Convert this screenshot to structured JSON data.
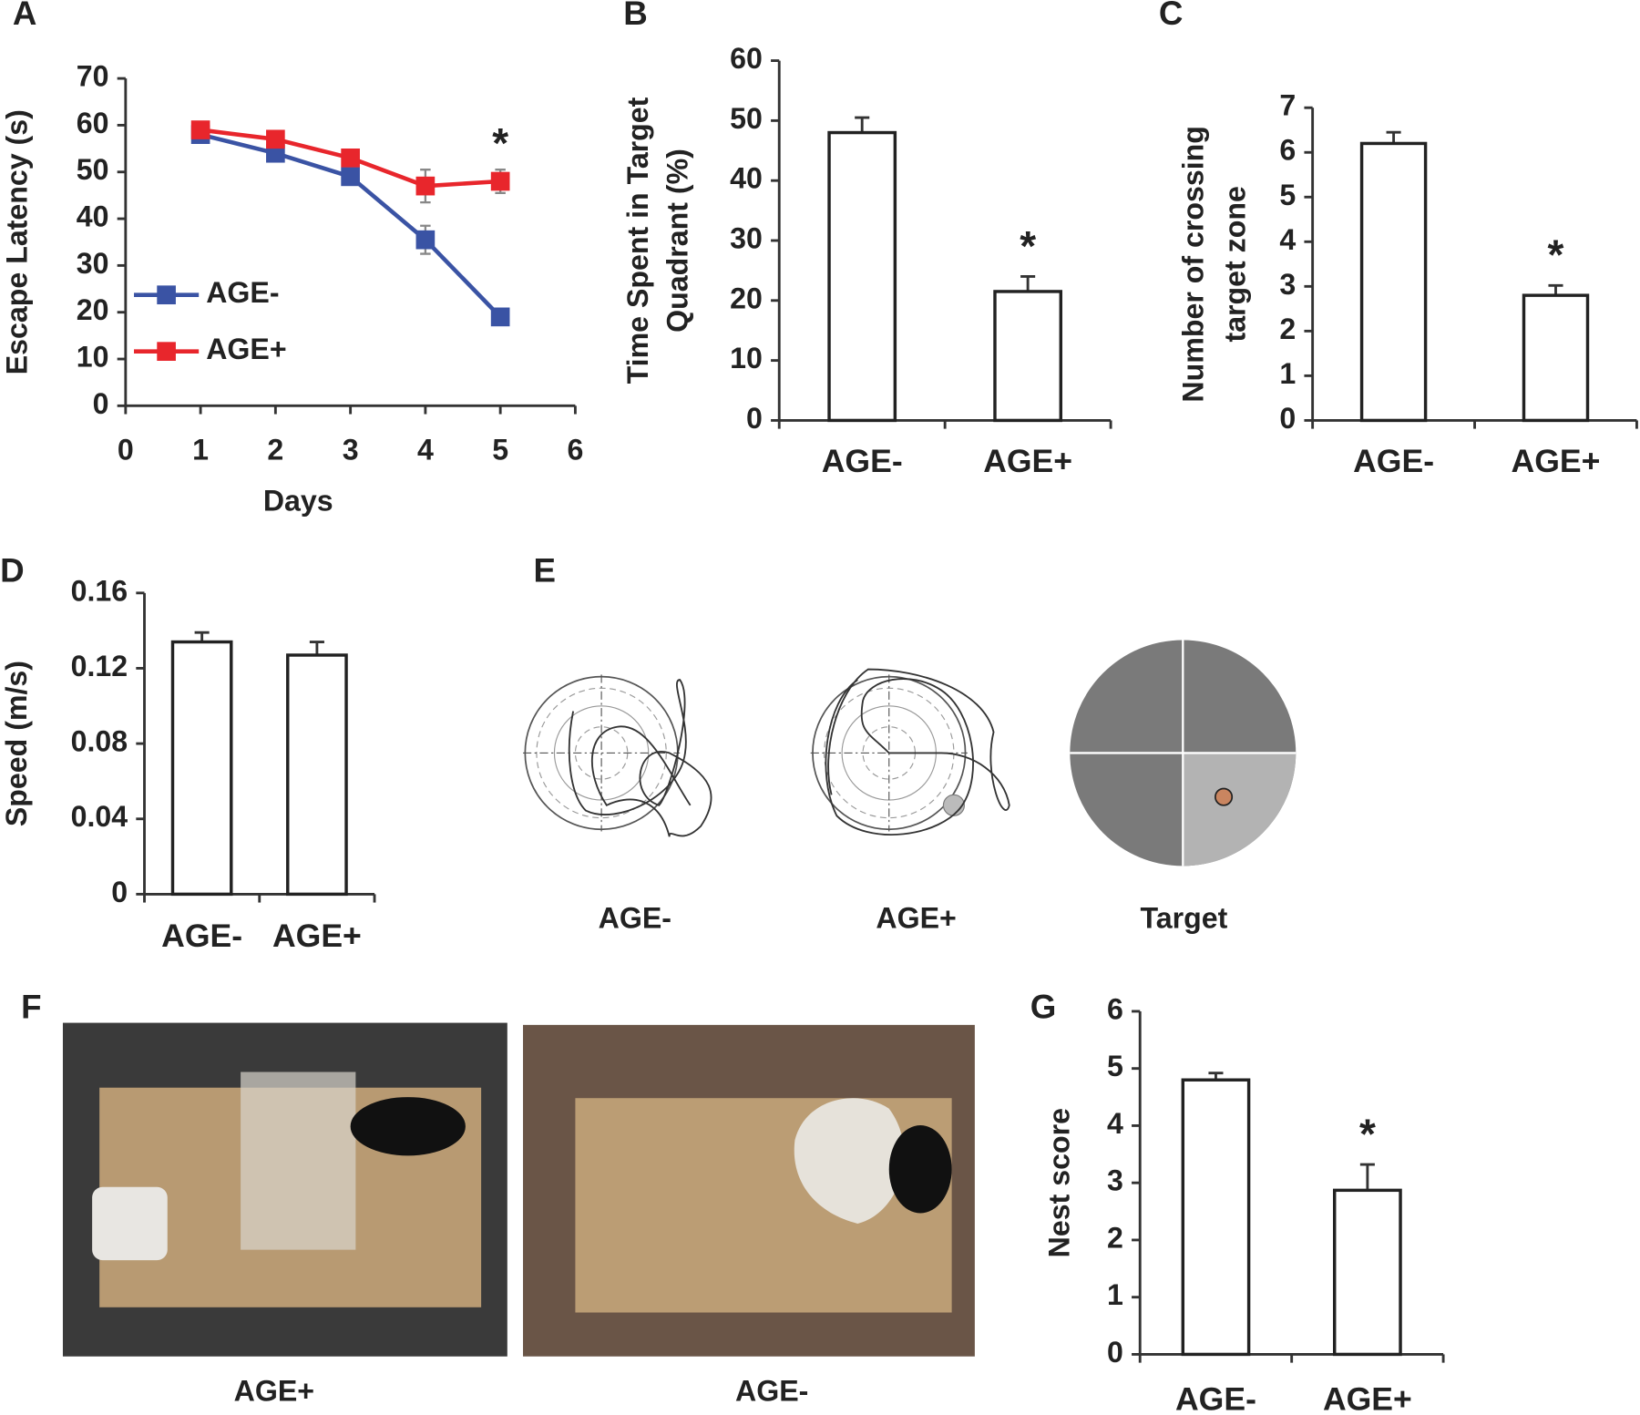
{
  "chart_data": [
    {
      "type": "line",
      "panel_label": "A",
      "xlabel": "Days",
      "ylabel": "Escape Latency (s)",
      "x": [
        1,
        2,
        3,
        4,
        5
      ],
      "xlim": [
        0,
        6
      ],
      "xticks": [
        0,
        1,
        2,
        3,
        4,
        5,
        6
      ],
      "ylim": [
        0,
        70
      ],
      "yticks": [
        0,
        10,
        20,
        30,
        40,
        50,
        60,
        70
      ],
      "legend": "lower left",
      "series": [
        {
          "name": "AGE-",
          "color": "#3a53a4",
          "values": [
            58,
            54,
            49,
            35.5,
            19
          ],
          "errors": [
            1,
            1.5,
            1.5,
            3,
            1
          ]
        },
        {
          "name": "AGE+",
          "color": "#e8262c",
          "values": [
            59,
            57,
            53,
            47,
            48
          ],
          "errors": [
            1,
            1,
            1,
            3.5,
            2.5
          ]
        }
      ],
      "significance": [
        null,
        null,
        null,
        null,
        "*"
      ]
    },
    {
      "type": "bar",
      "panel_label": "B",
      "ylabel": [
        "Time Spent in Target",
        "Quadrant (%)"
      ],
      "categories": [
        "AGE-",
        "AGE+"
      ],
      "values": [
        48,
        21.5
      ],
      "errors": [
        2.5,
        2.5
      ],
      "color": "#ffffff",
      "ylim": [
        0,
        60
      ],
      "yticks": [
        0,
        10,
        20,
        30,
        40,
        50,
        60
      ],
      "significance": [
        null,
        "*"
      ]
    },
    {
      "type": "bar",
      "panel_label": "C",
      "ylabel": [
        "Number of crossing",
        "target zone"
      ],
      "categories": [
        "AGE-",
        "AGE+"
      ],
      "values": [
        6.2,
        2.8
      ],
      "errors": [
        0.25,
        0.22
      ],
      "color": "#ffffff",
      "ylim": [
        0,
        7
      ],
      "yticks": [
        0,
        1,
        2,
        3,
        4,
        5,
        6,
        7
      ],
      "significance": [
        null,
        "*"
      ]
    },
    {
      "type": "bar",
      "panel_label": "D",
      "ylabel": "Speed (m/s)",
      "categories": [
        "AGE-",
        "AGE+"
      ],
      "values": [
        0.134,
        0.127
      ],
      "errors": [
        0.005,
        0.007
      ],
      "color": "#ffffff",
      "ylim": [
        0,
        0.16
      ],
      "yticks": [
        0,
        0.04,
        0.08,
        0.12,
        0.16
      ]
    },
    {
      "type": "bar",
      "panel_label": "G",
      "ylabel": "Nest score",
      "categories": [
        "AGE-",
        "AGE+"
      ],
      "values": [
        4.8,
        2.87
      ],
      "errors": [
        0.12,
        0.45
      ],
      "color": "#ffffff",
      "ylim": [
        0,
        6
      ],
      "yticks": [
        0,
        1,
        2,
        3,
        4,
        5,
        6
      ],
      "significance": [
        null,
        "*"
      ]
    }
  ],
  "trajectories": {
    "panel_label": "E",
    "labels": [
      "AGE-",
      "AGE+",
      "Target"
    ]
  },
  "photos": {
    "panel_label": "F",
    "labels": [
      "AGE+",
      "AGE-"
    ]
  }
}
